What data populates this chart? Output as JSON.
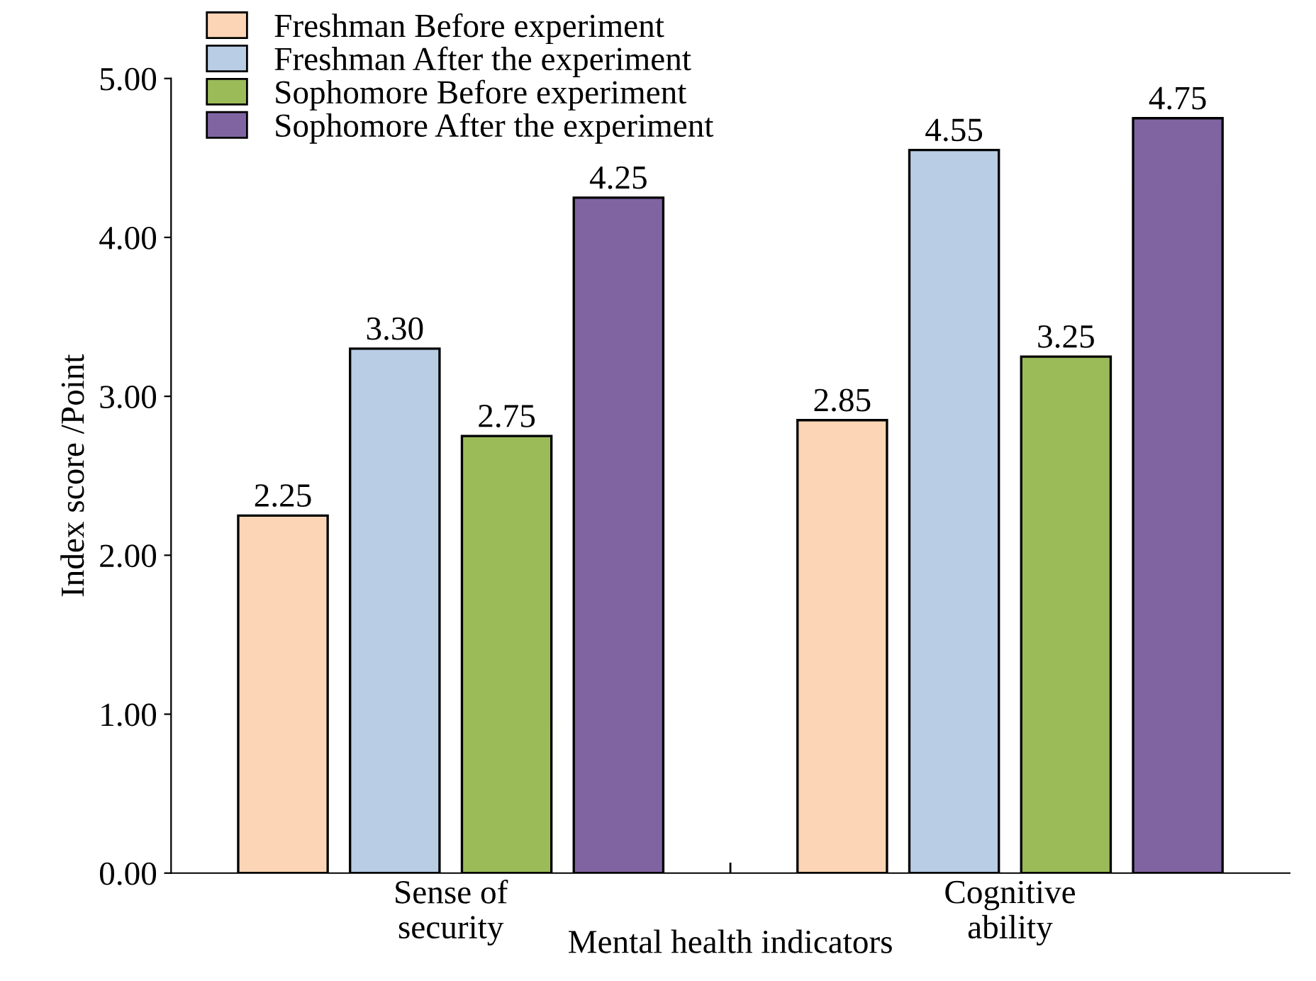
{
  "chart_data": {
    "type": "bar",
    "xlabel": "Mental health indicators",
    "ylabel": "Index score /Point",
    "categories": [
      "Sense of\nsecurity",
      "Cognitive\nability"
    ],
    "series": [
      {
        "name": "Freshman Before experiment",
        "color": "#fbd5b5",
        "values": [
          2.25,
          2.85
        ],
        "value_labels": [
          "2.25",
          "2.85"
        ]
      },
      {
        "name": "Freshman After the experiment",
        "color": "#b9cde5",
        "values": [
          3.3,
          4.55
        ],
        "value_labels": [
          "3.30",
          "4.55"
        ]
      },
      {
        "name": "Sophomore Before experiment",
        "color": "#9bbb59",
        "values": [
          2.75,
          3.25
        ],
        "value_labels": [
          "2.75",
          "3.25"
        ]
      },
      {
        "name": "Sophomore After the experiment",
        "color": "#8064a2",
        "values": [
          4.25,
          4.75
        ],
        "value_labels": [
          "4.25",
          "4.75"
        ]
      }
    ],
    "ylim": [
      0,
      5
    ],
    "yticks": [
      {
        "value": 0,
        "label": "0.00"
      },
      {
        "value": 1,
        "label": "1.00"
      },
      {
        "value": 2,
        "label": "2.00"
      },
      {
        "value": 3,
        "label": "3.00"
      },
      {
        "value": 4,
        "label": "4.00"
      },
      {
        "value": 5,
        "label": "5.00"
      }
    ],
    "grid": false,
    "legend": "top left"
  }
}
